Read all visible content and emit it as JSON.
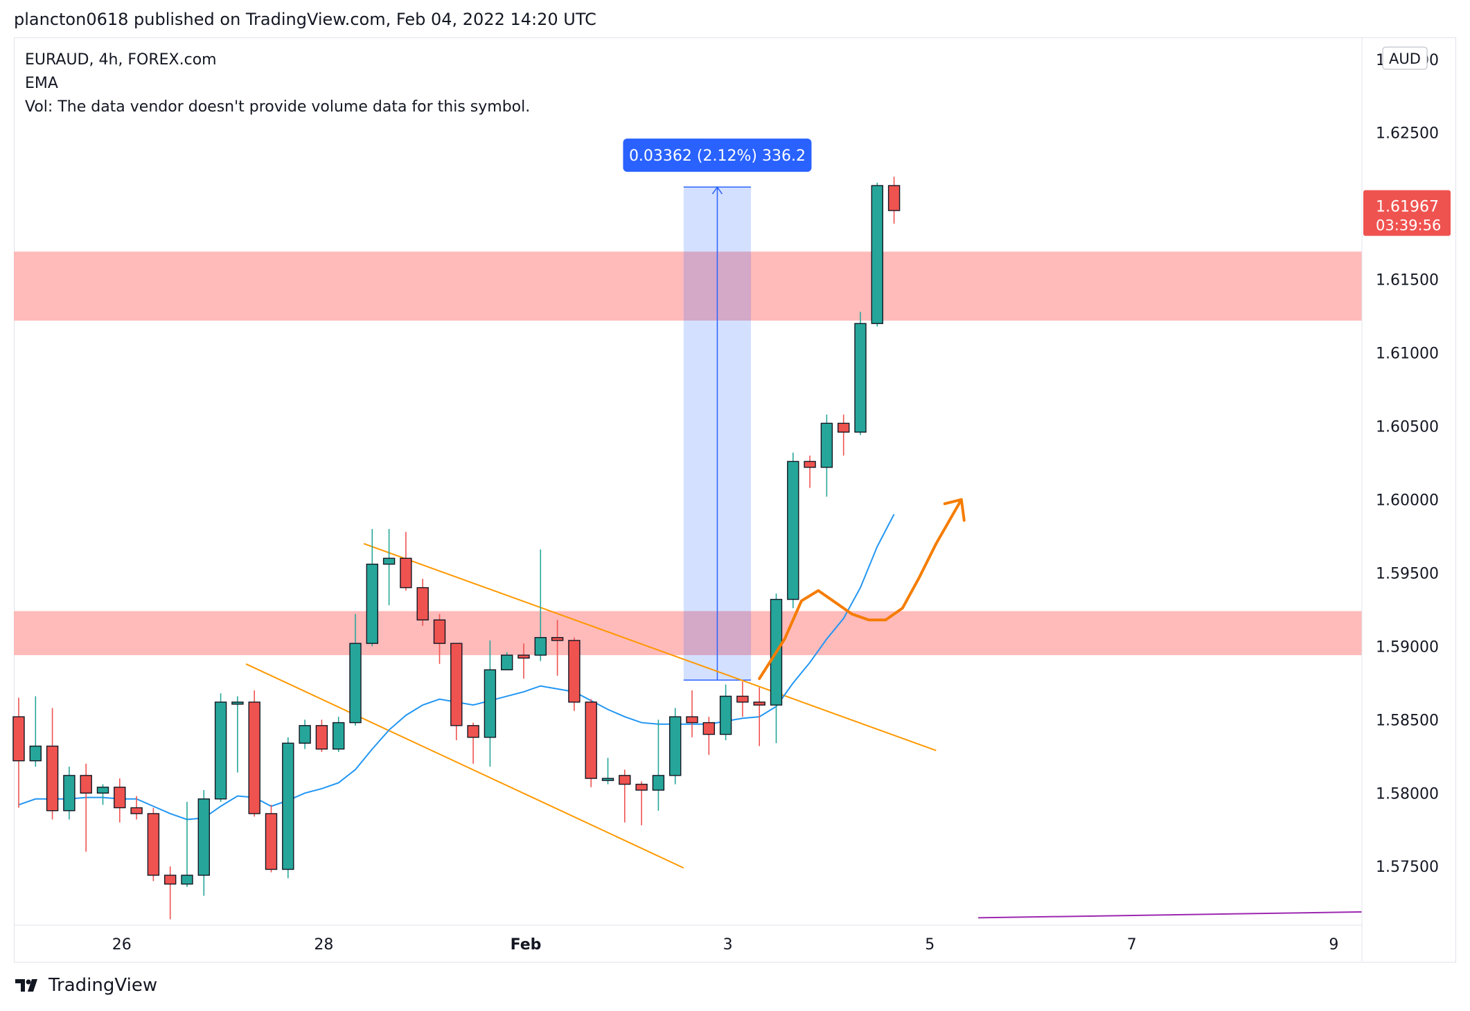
{
  "header": {
    "publish_line": "plancton0618 published on TradingView.com, Feb 04, 2022 14:20 UTC"
  },
  "legend": {
    "symbol_line": "EURAUD, 4h, FOREX.com",
    "indicator": "EMA",
    "volume_note": "Vol: The data vendor doesn't provide volume data for this symbol."
  },
  "price_scale": {
    "currency": "AUD",
    "ticks": [
      "1.63000",
      "1.62500",
      "1.61500",
      "1.61000",
      "1.60500",
      "1.60000",
      "1.59500",
      "1.59000",
      "1.58500",
      "1.58000",
      "1.57500"
    ],
    "last_price": "1.61967",
    "countdown": "03:39:56"
  },
  "time_axis": {
    "ticks": [
      "26",
      "28",
      "Feb",
      "3",
      "5",
      "7",
      "9"
    ]
  },
  "measure_label": "0.03362 (2.12%) 336.2",
  "footer": {
    "brand": "TradingView"
  },
  "colors": {
    "up": "#26a69a",
    "down": "#ef5350",
    "zone": "#ffb3b3",
    "ema": "#2196f3",
    "channel": "#ff9800",
    "measure": "#2962ff",
    "arrow": "#f57c00",
    "purple_line": "#9c27b0"
  },
  "chart_data": {
    "type": "candlestick",
    "symbol": "EURAUD",
    "timeframe": "4h",
    "exchange": "FOREX.com",
    "ylim": [
      1.571,
      1.6315
    ],
    "y_ticks": [
      1.575,
      1.58,
      1.585,
      1.59,
      1.595,
      1.6,
      1.605,
      1.61,
      1.615,
      1.625,
      1.63
    ],
    "x_ticks": [
      {
        "label": "26",
        "index": 6
      },
      {
        "label": "28",
        "index": 18
      },
      {
        "label": "Feb",
        "index": 30
      },
      {
        "label": "3",
        "index": 42
      },
      {
        "label": "5",
        "index": 54
      },
      {
        "label": "7",
        "index": 66
      },
      {
        "label": "9",
        "index": 78
      }
    ],
    "candles": [
      {
        "o": 1.5852,
        "h": 1.5865,
        "l": 1.579,
        "c": 1.5822
      },
      {
        "o": 1.5822,
        "h": 1.5866,
        "l": 1.5818,
        "c": 1.5832
      },
      {
        "o": 1.5832,
        "h": 1.5858,
        "l": 1.5782,
        "c": 1.5788
      },
      {
        "o": 1.5788,
        "h": 1.5818,
        "l": 1.5782,
        "c": 1.5812
      },
      {
        "o": 1.5812,
        "h": 1.582,
        "l": 1.576,
        "c": 1.58
      },
      {
        "o": 1.58,
        "h": 1.5806,
        "l": 1.5792,
        "c": 1.5804
      },
      {
        "o": 1.5804,
        "h": 1.581,
        "l": 1.578,
        "c": 1.579
      },
      {
        "o": 1.579,
        "h": 1.5798,
        "l": 1.5782,
        "c": 1.5786
      },
      {
        "o": 1.5786,
        "h": 1.579,
        "l": 1.574,
        "c": 1.5744
      },
      {
        "o": 1.5744,
        "h": 1.575,
        "l": 1.5714,
        "c": 1.5738
      },
      {
        "o": 1.5738,
        "h": 1.5794,
        "l": 1.5736,
        "c": 1.5744
      },
      {
        "o": 1.5744,
        "h": 1.5802,
        "l": 1.573,
        "c": 1.5796
      },
      {
        "o": 1.5796,
        "h": 1.5868,
        "l": 1.5794,
        "c": 1.5862
      },
      {
        "o": 1.5862,
        "h": 1.5866,
        "l": 1.5814,
        "c": 1.5862
      },
      {
        "o": 1.5862,
        "h": 1.587,
        "l": 1.5784,
        "c": 1.5786
      },
      {
        "o": 1.5786,
        "h": 1.5792,
        "l": 1.5746,
        "c": 1.5748
      },
      {
        "o": 1.5748,
        "h": 1.5838,
        "l": 1.5742,
        "c": 1.5834
      },
      {
        "o": 1.5834,
        "h": 1.585,
        "l": 1.583,
        "c": 1.5846
      },
      {
        "o": 1.5846,
        "h": 1.585,
        "l": 1.5828,
        "c": 1.583
      },
      {
        "o": 1.583,
        "h": 1.5852,
        "l": 1.5828,
        "c": 1.5848
      },
      {
        "o": 1.5848,
        "h": 1.5922,
        "l": 1.5846,
        "c": 1.5902
      },
      {
        "o": 1.5902,
        "h": 1.598,
        "l": 1.59,
        "c": 1.5956
      },
      {
        "o": 1.5956,
        "h": 1.598,
        "l": 1.5928,
        "c": 1.596
      },
      {
        "o": 1.596,
        "h": 1.5978,
        "l": 1.5938,
        "c": 1.594
      },
      {
        "o": 1.594,
        "h": 1.5946,
        "l": 1.5914,
        "c": 1.5918
      },
      {
        "o": 1.5918,
        "h": 1.5922,
        "l": 1.5888,
        "c": 1.5902
      },
      {
        "o": 1.5902,
        "h": 1.5902,
        "l": 1.5836,
        "c": 1.5846
      },
      {
        "o": 1.5846,
        "h": 1.5848,
        "l": 1.582,
        "c": 1.5838
      },
      {
        "o": 1.5838,
        "h": 1.5904,
        "l": 1.5818,
        "c": 1.5884
      },
      {
        "o": 1.5884,
        "h": 1.5896,
        "l": 1.5884,
        "c": 1.5894
      },
      {
        "o": 1.5894,
        "h": 1.5902,
        "l": 1.5878,
        "c": 1.5892
      },
      {
        "o": 1.5894,
        "h": 1.5966,
        "l": 1.589,
        "c": 1.5906
      },
      {
        "o": 1.5906,
        "h": 1.5918,
        "l": 1.588,
        "c": 1.5904
      },
      {
        "o": 1.5904,
        "h": 1.5906,
        "l": 1.5856,
        "c": 1.5862
      },
      {
        "o": 1.5862,
        "h": 1.5864,
        "l": 1.5804,
        "c": 1.581
      },
      {
        "o": 1.581,
        "h": 1.5824,
        "l": 1.5806,
        "c": 1.581
      },
      {
        "o": 1.5812,
        "h": 1.5816,
        "l": 1.578,
        "c": 1.5806
      },
      {
        "o": 1.5806,
        "h": 1.5808,
        "l": 1.5778,
        "c": 1.5802
      },
      {
        "o": 1.5802,
        "h": 1.585,
        "l": 1.5788,
        "c": 1.5812
      },
      {
        "o": 1.5812,
        "h": 1.5858,
        "l": 1.5806,
        "c": 1.5852
      },
      {
        "o": 1.5852,
        "h": 1.587,
        "l": 1.5838,
        "c": 1.5848
      },
      {
        "o": 1.5848,
        "h": 1.5852,
        "l": 1.5826,
        "c": 1.584
      },
      {
        "o": 1.584,
        "h": 1.5874,
        "l": 1.5836,
        "c": 1.5866
      },
      {
        "o": 1.5866,
        "h": 1.5876,
        "l": 1.5852,
        "c": 1.5862
      },
      {
        "o": 1.5862,
        "h": 1.5872,
        "l": 1.5832,
        "c": 1.586
      },
      {
        "o": 1.586,
        "h": 1.5936,
        "l": 1.5834,
        "c": 1.5932
      },
      {
        "o": 1.5932,
        "h": 1.6032,
        "l": 1.5926,
        "c": 1.6026
      },
      {
        "o": 1.6026,
        "h": 1.603,
        "l": 1.6008,
        "c": 1.6022
      },
      {
        "o": 1.6022,
        "h": 1.6058,
        "l": 1.6002,
        "c": 1.6052
      },
      {
        "o": 1.6052,
        "h": 1.6058,
        "l": 1.603,
        "c": 1.6046
      },
      {
        "o": 1.6046,
        "h": 1.6128,
        "l": 1.6044,
        "c": 1.612
      },
      {
        "o": 1.612,
        "h": 1.6216,
        "l": 1.6118,
        "c": 1.6214
      },
      {
        "o": 1.6214,
        "h": 1.622,
        "l": 1.6188,
        "c": 1.6197
      }
    ],
    "ema": [
      1.5792,
      1.5796,
      1.5796,
      1.5796,
      1.5797,
      1.5797,
      1.5796,
      1.5796,
      1.5791,
      1.5786,
      1.5782,
      1.5783,
      1.5791,
      1.5798,
      1.5797,
      1.5791,
      1.5795,
      1.58,
      1.5803,
      1.5807,
      1.5816,
      1.583,
      1.5843,
      1.5853,
      1.586,
      1.5864,
      1.5862,
      1.586,
      1.5863,
      1.5866,
      1.5869,
      1.5873,
      1.5871,
      1.5869,
      1.5863,
      1.5857,
      1.5852,
      1.5848,
      1.5847,
      1.5847,
      1.5847,
      1.5847,
      1.5849,
      1.5851,
      1.5852,
      1.5859,
      1.5875,
      1.5889,
      1.5905,
      1.5919,
      1.594,
      1.5968,
      1.599
    ],
    "zones": [
      {
        "from": 1.5894,
        "to": 1.5924
      },
      {
        "from": 1.6122,
        "to": 1.6169
      }
    ],
    "descending_channel": [
      {
        "from": {
          "i": 13.5,
          "price": 1.5888
        },
        "to": {
          "i": 39.5,
          "price": 1.5749
        }
      },
      {
        "from": {
          "i": 20.5,
          "price": 1.597
        },
        "to": {
          "i": 45.5,
          "price": 1.5845
        },
        "extends_to_i": 54.5,
        "extends_to_price": 1.5829
      }
    ],
    "measure": {
      "from_price": 1.5877,
      "to_price": 1.6213,
      "i_start": 39.5,
      "i_end": 43.5,
      "label": "0.03362 (2.12%) 336.2"
    },
    "projection_arrow": [
      [
        44.0,
        1.5878
      ],
      [
        45.5,
        1.5905
      ],
      [
        46.5,
        1.5931
      ],
      [
        47.5,
        1.5938
      ],
      [
        48.5,
        1.593
      ],
      [
        49.5,
        1.5922
      ],
      [
        50.5,
        1.5918
      ],
      [
        51.5,
        1.5918
      ],
      [
        52.5,
        1.5926
      ],
      [
        53.5,
        1.5947
      ],
      [
        54.5,
        1.597
      ],
      [
        55.5,
        1.599
      ],
      [
        56.0,
        1.6
      ]
    ],
    "purple_line": [
      [
        57.0,
        1.5715
      ],
      [
        80.0,
        1.5719
      ]
    ]
  }
}
